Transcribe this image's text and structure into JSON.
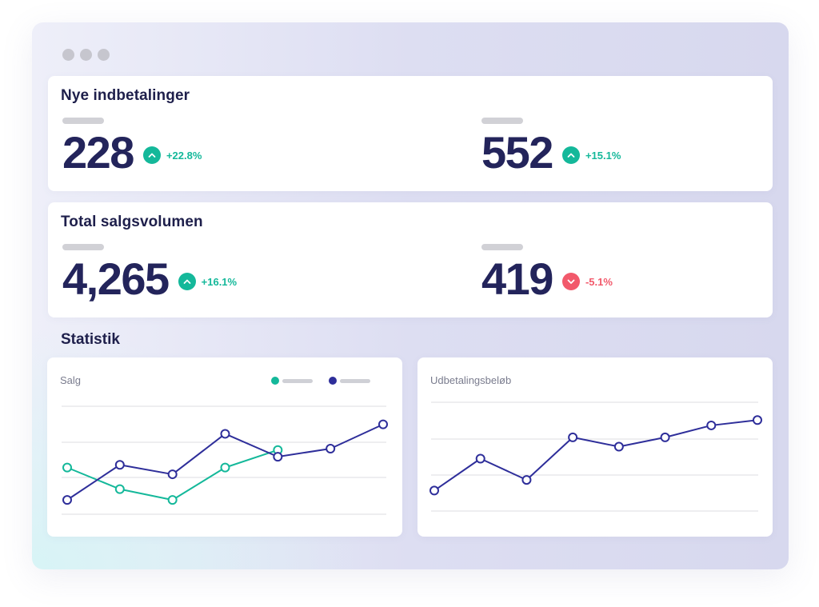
{
  "kpi_sections": [
    {
      "title": "Nye indbetalinger",
      "metrics": [
        {
          "value": "228",
          "change": "+22.8%",
          "direction": "up"
        },
        {
          "value": "552",
          "change": "+15.1%",
          "direction": "up"
        }
      ]
    },
    {
      "title": "Total salgsvolumen",
      "metrics": [
        {
          "value": "4,265",
          "change": "+16.1%",
          "direction": "up"
        },
        {
          "value": "419",
          "change": "-5.1%",
          "direction": "down"
        }
      ]
    }
  ],
  "statistics": {
    "title": "Statistik",
    "sales_chart": {
      "label": "Salg",
      "legend": [
        {
          "color": "#14b89a"
        },
        {
          "color": "#2e2e9a"
        }
      ]
    },
    "payout_chart": {
      "label": "Udbetalingsbeløb"
    }
  },
  "colors": {
    "teal": "#14b89a",
    "navy": "#2e2e9a",
    "red": "#f2596b",
    "text_dark": "#23245b"
  },
  "icons": {
    "up": "chevron-up-icon",
    "down": "chevron-down-icon"
  },
  "chart_data": [
    {
      "type": "line",
      "title": "Salg",
      "x": [
        1,
        2,
        3,
        4,
        5,
        6,
        7
      ],
      "series": [
        {
          "color": "#14b89a",
          "values": [
            2.2,
            1.4,
            1.0,
            2.2,
            2.85,
            null,
            null
          ]
        },
        {
          "color": "#2e2e9a",
          "values": [
            1.0,
            2.3,
            1.95,
            3.45,
            2.6,
            2.9,
            3.8
          ]
        }
      ],
      "ylim": [
        0.5,
        4.5
      ],
      "grid": true
    },
    {
      "type": "line",
      "title": "Udbetalingsbeløb",
      "x": [
        1,
        2,
        3,
        4,
        5,
        6,
        7,
        8
      ],
      "series": [
        {
          "color": "#2e2e9a",
          "values": [
            1.3,
            2.5,
            1.7,
            3.3,
            2.95,
            3.3,
            3.75,
            3.95
          ]
        }
      ],
      "ylim": [
        0.5,
        4.5
      ],
      "grid": true
    }
  ]
}
